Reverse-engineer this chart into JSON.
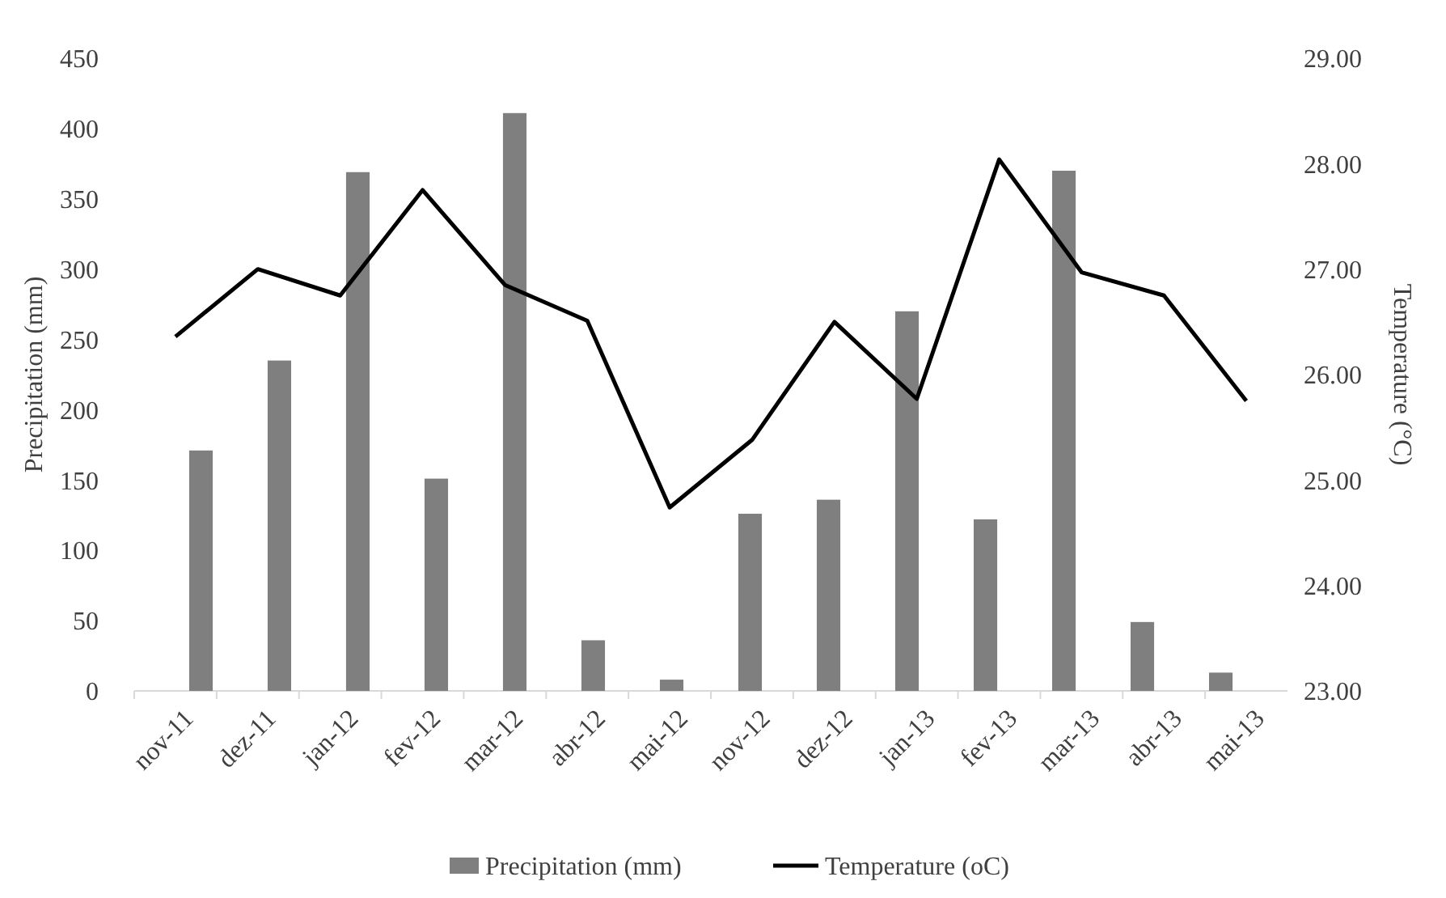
{
  "chart_data": {
    "type": "bar",
    "ylabel": "Precipitation (mm)",
    "y2label": "Temperature (°C)",
    "categories": [
      "nov-11",
      "dez-11",
      "jan-12",
      "fev-12",
      "mar-12",
      "abr-12",
      "mai-12",
      "nov-12",
      "dez-12",
      "jan-13",
      "fev-13",
      "mar-13",
      "abr-13",
      "mai-13"
    ],
    "series": [
      {
        "name": "Precipitation (mm)",
        "color": "#7f7f7f",
        "values": [
          171,
          235,
          369,
          151,
          411,
          36,
          8,
          126,
          136,
          270,
          122,
          370,
          49,
          13
        ]
      },
      {
        "name": "Temperature (oC)",
        "type": "line",
        "axis": "y2",
        "color": "#000000",
        "values": [
          26.36,
          27.0,
          26.75,
          27.75,
          26.85,
          26.51,
          24.74,
          25.38,
          26.5,
          25.77,
          28.04,
          26.97,
          26.75,
          25.75
        ]
      }
    ],
    "ylim": [
      0,
      450
    ],
    "yticks": [
      0,
      50,
      100,
      150,
      200,
      250,
      300,
      350,
      400,
      450
    ],
    "y2lim": [
      23,
      29
    ],
    "y2ticks": [
      {
        "value": 23,
        "label": "23.00"
      },
      {
        "value": 24,
        "label": "24.00"
      },
      {
        "value": 25,
        "label": "25.00"
      },
      {
        "value": 26,
        "label": "26.00"
      },
      {
        "value": 27,
        "label": "27.00"
      },
      {
        "value": 28,
        "label": "28.00"
      },
      {
        "value": 29,
        "label": "29.00"
      }
    ],
    "legend": "bottom",
    "grid": false
  }
}
